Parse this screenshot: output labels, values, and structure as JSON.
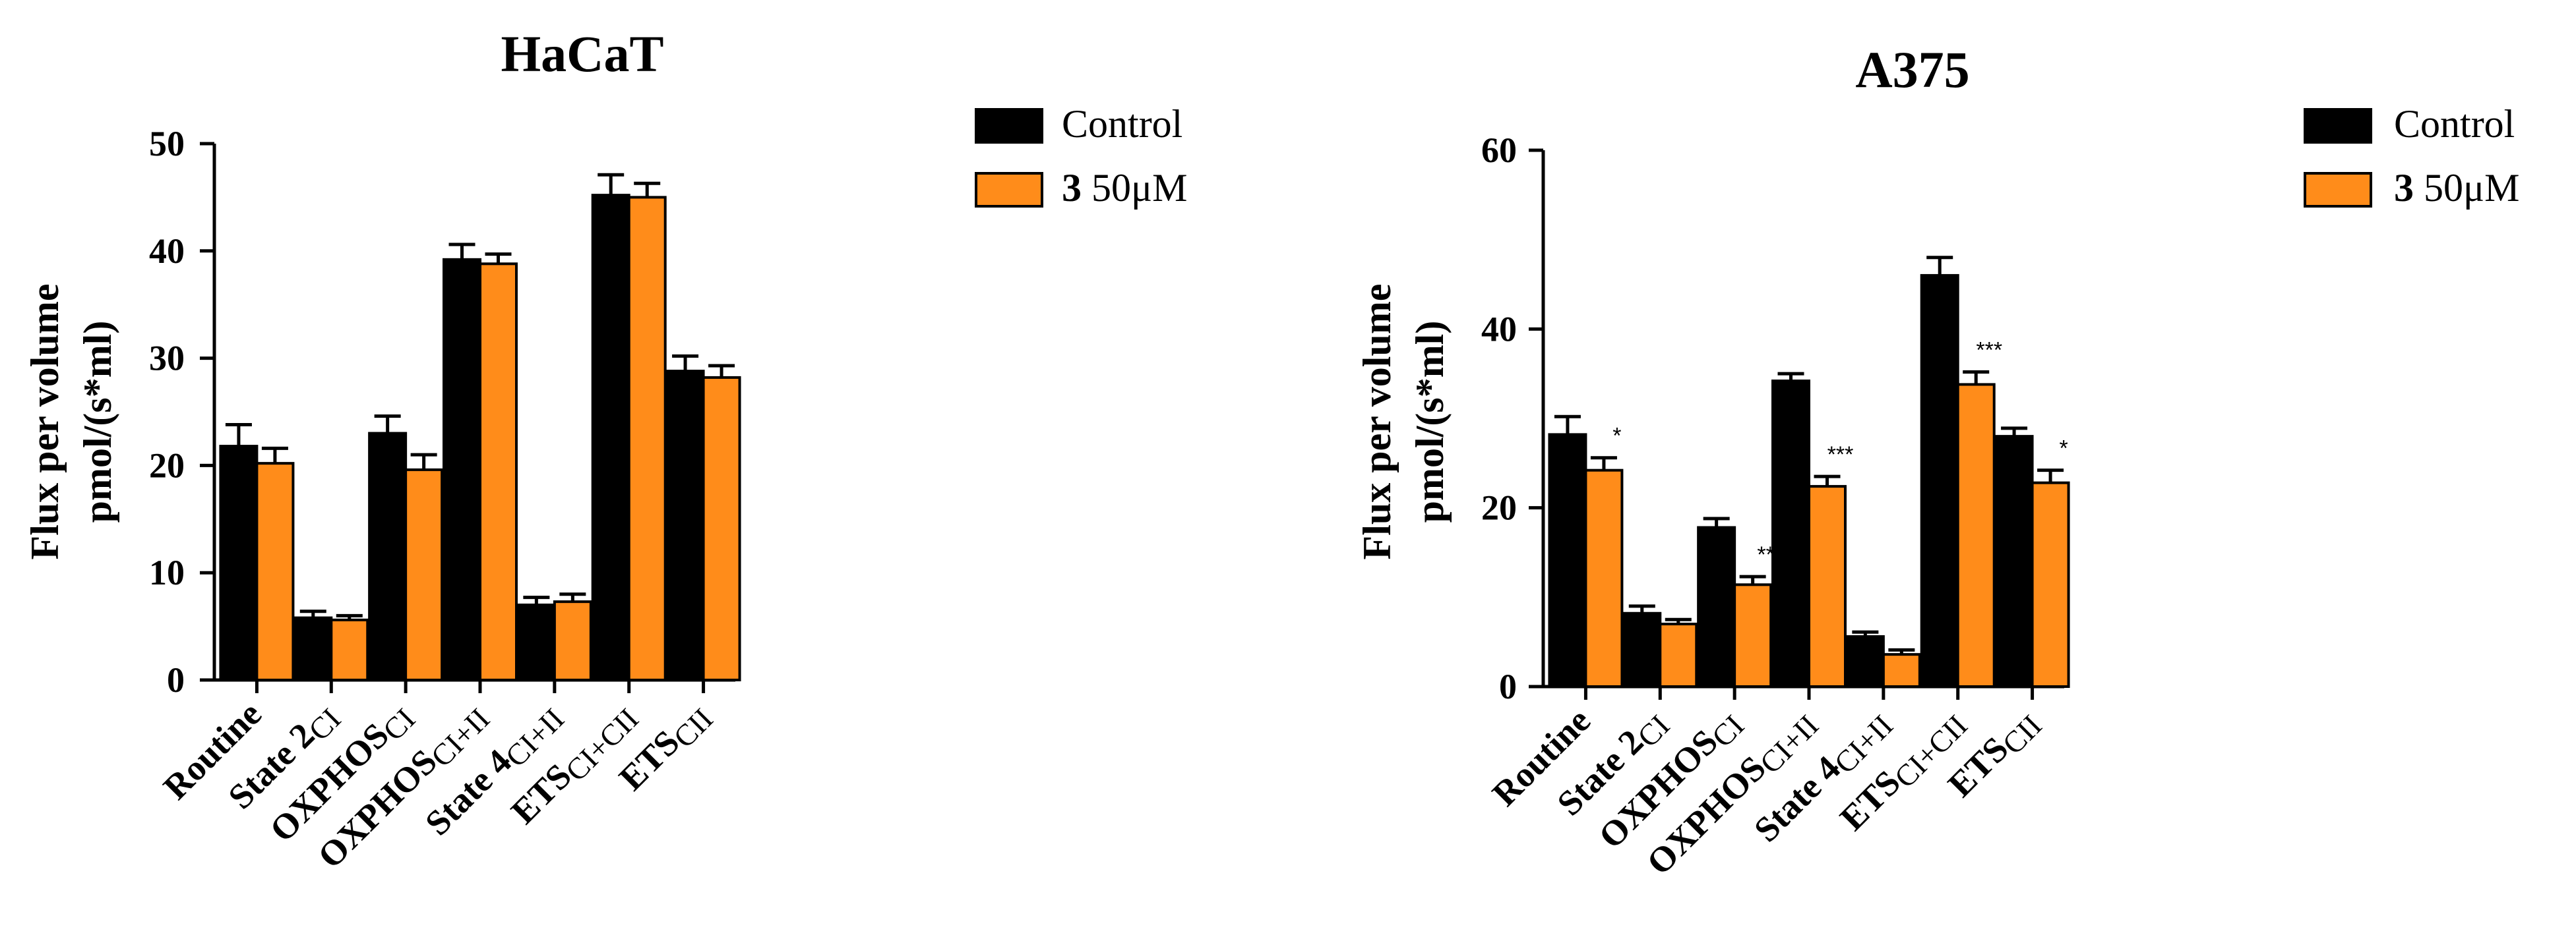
{
  "colors": {
    "control": "#000000",
    "treated": "#ff8c1a",
    "axis": "#000000"
  },
  "chart_data": [
    {
      "type": "bar",
      "title": "HaCaT",
      "ylabel_line1": "Flux per volume",
      "ylabel_line2": "pmol/(s*ml)",
      "xlabel": "",
      "ylim": [
        0,
        50
      ],
      "yticks": [
        0,
        10,
        20,
        30,
        40,
        50
      ],
      "categories": [
        {
          "main": "Routine",
          "sub": ""
        },
        {
          "main": "State 2",
          "sub": "CI"
        },
        {
          "main": "OXPHOS",
          "sub": "CI"
        },
        {
          "main": "OXPHOS",
          "sub": "CI+II"
        },
        {
          "main": "State 4",
          "sub": "CI+II"
        },
        {
          "main": "ETS",
          "sub": "CI+CII"
        },
        {
          "main": "ETS",
          "sub": "CII"
        }
      ],
      "legend": [
        {
          "label": "Control"
        },
        {
          "label_bold": "3",
          "label": " 50μM"
        }
      ],
      "series": [
        {
          "name": "Control",
          "values": [
            21.8,
            5.8,
            23.0,
            39.2,
            7.0,
            45.2,
            28.8
          ],
          "errors": [
            2.0,
            0.6,
            1.6,
            1.4,
            0.7,
            1.9,
            1.4
          ]
        },
        {
          "name": "3 50μM",
          "values": [
            20.2,
            5.6,
            19.6,
            38.8,
            7.3,
            45.0,
            28.2
          ],
          "errors": [
            1.4,
            0.4,
            1.4,
            0.9,
            0.7,
            1.3,
            1.1
          ]
        }
      ],
      "significance": [
        "",
        "",
        "",
        "",
        "",
        "",
        ""
      ]
    },
    {
      "type": "bar",
      "title": "A375",
      "ylabel_line1": "Flux per volume",
      "ylabel_line2": "pmol/(s*ml)",
      "xlabel": "",
      "ylim": [
        0,
        60
      ],
      "yticks": [
        0,
        20,
        40,
        60
      ],
      "categories": [
        {
          "main": "Routine",
          "sub": ""
        },
        {
          "main": "State 2",
          "sub": "CI"
        },
        {
          "main": "OXPHOS",
          "sub": "CI"
        },
        {
          "main": "OXPHOS",
          "sub": "CI+II"
        },
        {
          "main": "State 4",
          "sub": "CI+II"
        },
        {
          "main": "ETS",
          "sub": "CI+CII"
        },
        {
          "main": "ETS",
          "sub": "CII"
        }
      ],
      "legend": [
        {
          "label": "Control"
        },
        {
          "label_bold": "3",
          "label": " 50μM"
        }
      ],
      "series": [
        {
          "name": "Control",
          "values": [
            28.2,
            8.2,
            17.8,
            34.2,
            5.6,
            46.0,
            28.0
          ],
          "errors": [
            2.0,
            0.8,
            1.0,
            0.8,
            0.5,
            2.0,
            0.9
          ]
        },
        {
          "name": "3 50μM",
          "values": [
            24.2,
            7.0,
            11.4,
            22.4,
            3.6,
            33.8,
            22.8
          ],
          "errors": [
            1.4,
            0.5,
            0.9,
            1.1,
            0.5,
            1.4,
            1.4
          ]
        }
      ],
      "significance": [
        "*",
        "",
        "**",
        "***",
        "",
        "***",
        "*"
      ]
    }
  ]
}
